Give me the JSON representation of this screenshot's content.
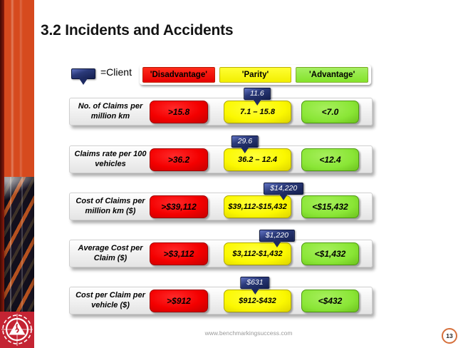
{
  "slide": {
    "title": "3.2 Incidents and Accidents",
    "footer_url": "www.benchmarkingsuccess.com",
    "page_number": "13"
  },
  "legend": {
    "client_label": "=Client",
    "client_icon": "client-callout-marker",
    "headers": [
      {
        "label": "'Disadvantage'",
        "color": "#ee1409"
      },
      {
        "label": "'Parity'",
        "color": "#faf700"
      },
      {
        "label": "'Advantage'",
        "color": "#8ce63c"
      }
    ]
  },
  "table": {
    "rows": [
      {
        "label": "No. of Claims per million km",
        "disadvantage": ">15.8",
        "parity": "7.1 – 15.8",
        "advantage": "<7.0",
        "client_value": "11.6",
        "marker_pct": 62.0
      },
      {
        "label": "Claims rate per 100 vehicles",
        "disadvantage": ">36.2",
        "parity": "36.2 – 12.4",
        "advantage": "<12.4",
        "client_value": "29.6",
        "marker_pct": 58.0
      },
      {
        "label": "Cost of Claims per million km ($)",
        "disadvantage": ">$39,112",
        "parity": "$39,112-$15,432",
        "advantage": "<$15,432",
        "client_value": "$14,220",
        "marker_pct": 70.8
      },
      {
        "label": "Average Cost per Claim ($)",
        "disadvantage": ">$3,112",
        "parity": "$3,112-$1,432",
        "advantage": "<$1,432",
        "client_value": "$1,220",
        "marker_pct": 68.6
      },
      {
        "label": "Cost per Claim per vehicle ($)",
        "disadvantage": ">$912",
        "parity": "$912-$432",
        "advantage": "<$432",
        "client_value": "$631",
        "marker_pct": 61.3
      }
    ]
  },
  "colors": {
    "sidebar_orange": "#d64a1e",
    "disadvantage_red": "#f20000",
    "parity_yellow": "#faf700",
    "advantage_green": "#86e32f",
    "client_navy": "#1e2b66",
    "page_circle_orange": "#d6703c"
  }
}
